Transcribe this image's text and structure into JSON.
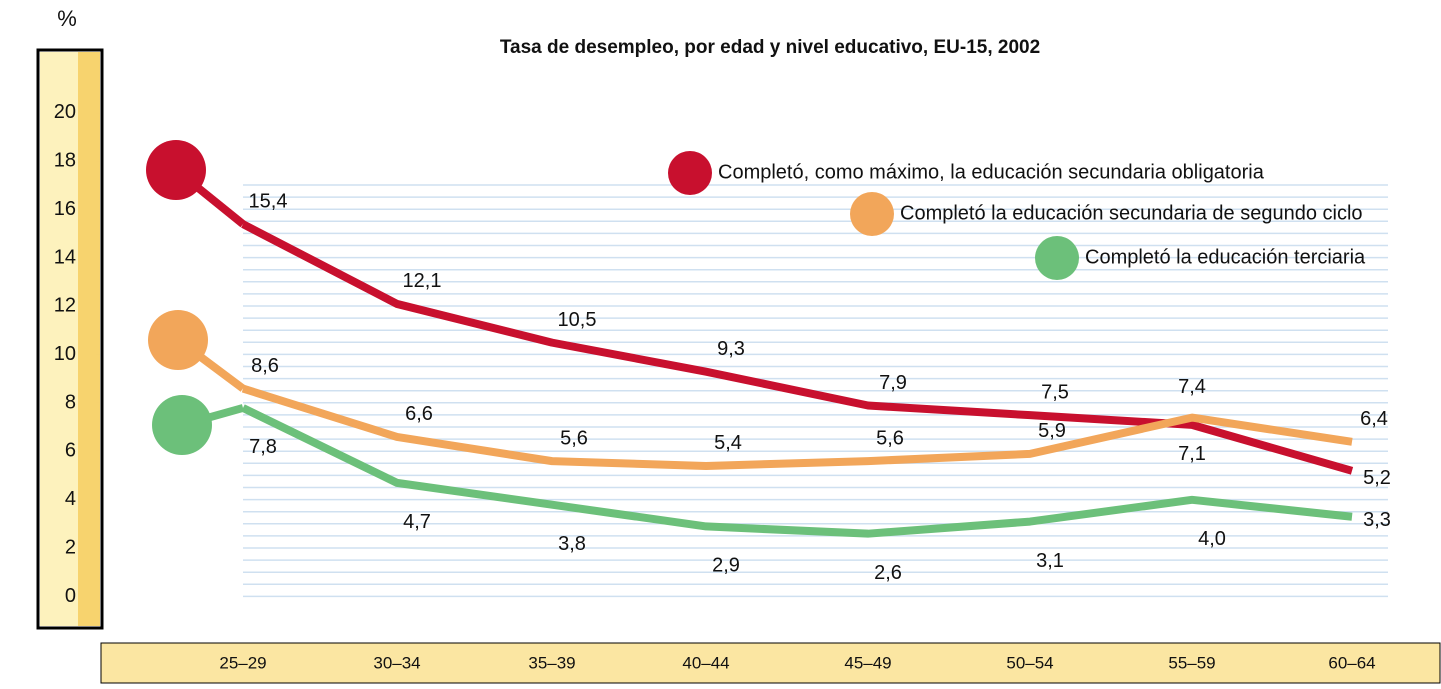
{
  "chart_data": {
    "type": "line",
    "title": "Tasa de desempleo, por edad y nivel educativo, EU-15, 2002",
    "y_axis_label": "%",
    "categories": [
      "25–29",
      "30–34",
      "35–39",
      "40–44",
      "45–49",
      "50–54",
      "55–59",
      "60–64"
    ],
    "series": [
      {
        "name": "Completó, como máximo, la educación secundaria obligatoria",
        "color": "#c8102e",
        "values": [
          15.4,
          12.1,
          10.5,
          9.3,
          7.9,
          7.5,
          7.1,
          5.2
        ],
        "value_labels": [
          "15,4",
          "12,1",
          "10,5",
          "9,3",
          "7,9",
          "7,5",
          "7,1",
          "5,2"
        ]
      },
      {
        "name": "Completó la educación secundaria de segundo ciclo",
        "color": "#f2a65a",
        "values": [
          8.6,
          6.6,
          5.6,
          5.4,
          5.6,
          5.9,
          7.4,
          6.4
        ],
        "value_labels": [
          "8,6",
          "6,6",
          "5,6",
          "5,4",
          "5,6",
          "5,9",
          "7,4",
          "6,4"
        ]
      },
      {
        "name": "Completó la educación terciaria",
        "color": "#6cc07a",
        "values": [
          7.8,
          4.7,
          3.8,
          2.9,
          2.6,
          3.1,
          4.0,
          3.3
        ],
        "value_labels": [
          "7,8",
          "4,7",
          "3,8",
          "2,9",
          "2,6",
          "3,1",
          "4,0",
          "3,3"
        ]
      }
    ],
    "ylim": [
      -1.3,
      22.6
    ],
    "yticks": [
      0,
      2,
      4,
      6,
      8,
      10,
      12,
      14,
      16,
      18,
      20
    ]
  }
}
